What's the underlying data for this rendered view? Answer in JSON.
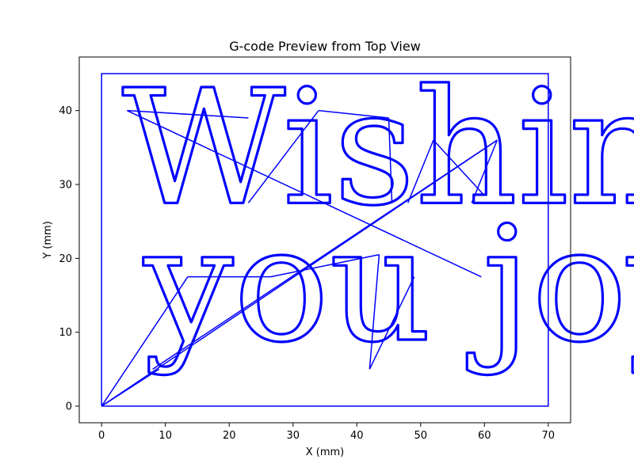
{
  "chart_data": {
    "type": "line",
    "title": "G-code Preview from Top View",
    "xlabel": "X (mm)",
    "ylabel": "Y (mm)",
    "xlim": [
      -3.5,
      73.5
    ],
    "ylim": [
      -2.25,
      47.25
    ],
    "xticks": [
      0,
      10,
      20,
      30,
      40,
      50,
      60,
      70
    ],
    "yticks": [
      0,
      10,
      20,
      30,
      40
    ],
    "grid": false,
    "legend": "none",
    "color": "#0000ff",
    "series": [
      {
        "role": "border",
        "points": [
          [
            0,
            0
          ],
          [
            0,
            45
          ],
          [
            70,
            45
          ],
          [
            70,
            0
          ],
          [
            0,
            0
          ]
        ]
      },
      {
        "role": "travel-moves",
        "segments": [
          [
            [
              0,
              0
            ],
            [
              13.5,
              17.5
            ]
          ],
          [
            [
              0,
              0
            ],
            [
              62,
              36
            ]
          ],
          [
            [
              0,
              0
            ],
            [
              9,
              5
            ]
          ],
          [
            [
              4,
              40
            ],
            [
              23,
              39
            ]
          ],
          [
            [
              4,
              40
            ],
            [
              59.5,
              17.5
            ]
          ],
          [
            [
              23,
              27.5
            ],
            [
              34,
              40
            ]
          ],
          [
            [
              34,
              40
            ],
            [
              45,
              39
            ]
          ],
          [
            [
              45,
              39
            ],
            [
              45.5,
              27.5
            ]
          ],
          [
            [
              42,
              5
            ],
            [
              43.5,
              20.5
            ]
          ],
          [
            [
              42,
              5
            ],
            [
              49,
              17.5
            ]
          ],
          [
            [
              48,
              27.5
            ],
            [
              52,
              36
            ]
          ],
          [
            [
              52,
              36
            ],
            [
              60,
              28.5
            ]
          ],
          [
            [
              62,
              36
            ],
            [
              58,
              27.5
            ]
          ],
          [
            [
              8,
              5
            ],
            [
              62,
              36
            ]
          ],
          [
            [
              13.5,
              17.5
            ],
            [
              26.5,
              17.5
            ]
          ],
          [
            [
              26.5,
              17.5
            ],
            [
              43.5,
              20.5
            ]
          ]
        ]
      }
    ],
    "text_paths": [
      {
        "text": "Wishing",
        "x": 3.2,
        "y": 27.5,
        "size": 21.5
      },
      {
        "text": "you joy",
        "x": 6.6,
        "y": 9,
        "size": 21.5
      }
    ]
  }
}
